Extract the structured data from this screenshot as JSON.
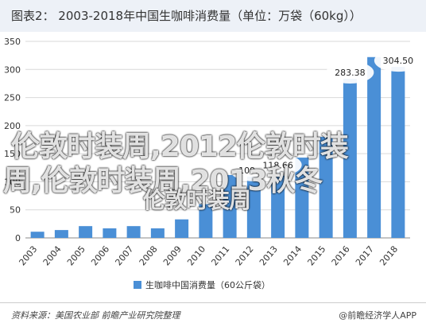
{
  "header": {
    "title": "图表2：  2003-2018年中国生咖啡消费量（单位：万袋（60kg））"
  },
  "chart_data": {
    "type": "bar",
    "categories": [
      "2003",
      "2004",
      "2005",
      "2006",
      "2007",
      "2008",
      "2009",
      "2010",
      "2011",
      "2012",
      "2013",
      "2014",
      "2015",
      "2016",
      "2017",
      "2018"
    ],
    "series": [
      {
        "name": "生咖啡中国消费量（60公斤袋）",
        "values": [
          11,
          14,
          21,
          17,
          21,
          17,
          33,
          60,
          112,
          109.27,
          118.66,
          143,
          180,
          283.38,
          322,
          304.5
        ]
      }
    ],
    "data_labels": [
      {
        "category": "2012",
        "text": "109.27"
      },
      {
        "category": "2013",
        "text": "118.66"
      },
      {
        "category": "2016",
        "text": "283.38"
      },
      {
        "category": "2018",
        "text": "304.50"
      }
    ],
    "yticks": [
      "0",
      "50",
      "100",
      "150",
      "200",
      "250",
      "300",
      "350"
    ],
    "ylim": [
      0,
      350
    ],
    "grid": true,
    "legend": "bottom",
    "color": "#4a8fd6"
  },
  "watermark": {
    "line1": "伦敦时装周,2012伦敦时装",
    "line2": "周,伦敦时装周,2013秋冬",
    "line3": "伦敦时装周"
  },
  "footer": {
    "source": "资料来源：美国农业部 前瞻产业研究院整理",
    "brand": "@前瞻经济学人APP"
  }
}
